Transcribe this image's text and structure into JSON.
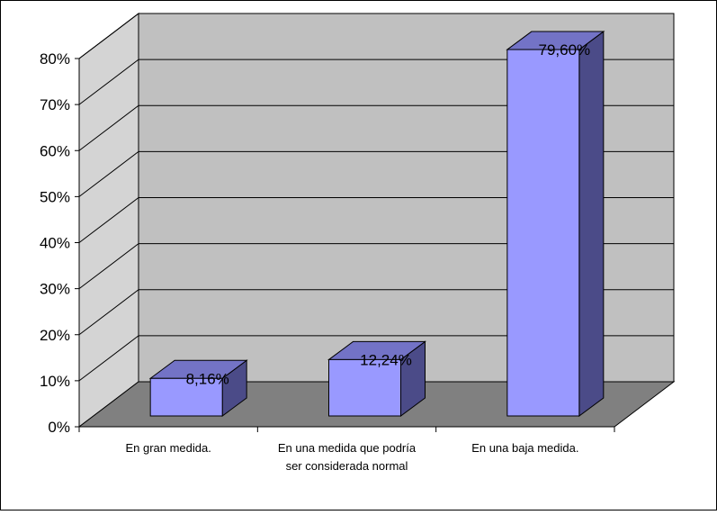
{
  "chart_data": {
    "type": "bar",
    "style": "3d-clustered-column",
    "title": "",
    "xlabel": "",
    "ylabel": "",
    "ylim": [
      0,
      80
    ],
    "yticks": [
      "0%",
      "10%",
      "20%",
      "30%",
      "40%",
      "50%",
      "60%",
      "70%",
      "80%"
    ],
    "grid": true,
    "legend": "none",
    "categories": [
      [
        "En gran medida."
      ],
      [
        "En una medida que podría",
        "ser considerada normal"
      ],
      [
        "En una baja medida."
      ]
    ],
    "values": [
      8.16,
      12.24,
      79.6
    ],
    "data_labels": [
      "8,16%",
      "12,24%",
      "79,60%"
    ],
    "colors": {
      "bar_front": "#9999ff",
      "bar_top": "#7373c6",
      "bar_side": "#4b4b88",
      "back_wall": "#c0c0c0",
      "side_wall": "#d4d4d4",
      "floor": "#808080",
      "grid": "#000000"
    }
  }
}
